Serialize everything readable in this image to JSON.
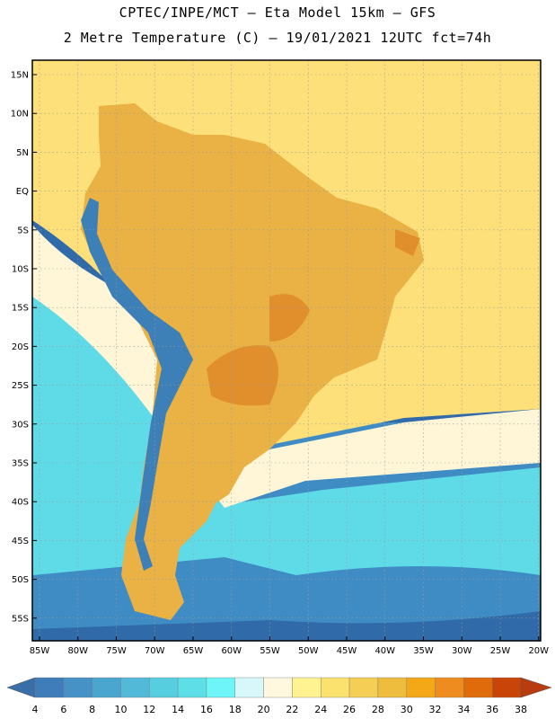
{
  "header": {
    "line1": "CPTEC/INPE/MCT –  Eta Model 15km – GFS",
    "line2": "2 Metre Temperature (C) – 19/01/2021 12UTC fct=74h"
  },
  "map": {
    "lat_labels": [
      "15N",
      "10N",
      "5N",
      "EQ",
      "5S",
      "10S",
      "15S",
      "20S",
      "25S",
      "30S",
      "35S",
      "40S",
      "45S",
      "50S",
      "55S"
    ],
    "lon_labels": [
      "85W",
      "80W",
      "75W",
      "70W",
      "65W",
      "60W",
      "55W",
      "50W",
      "45W",
      "40W",
      "35W",
      "30W",
      "25W",
      "20W"
    ],
    "lon_range": [
      -85,
      -20
    ],
    "lat_range": [
      -58,
      17
    ]
  },
  "legend": {
    "labels": [
      "4",
      "6",
      "8",
      "10",
      "12",
      "14",
      "16",
      "18",
      "20",
      "22",
      "24",
      "26",
      "28",
      "30",
      "32",
      "34",
      "36",
      "38"
    ],
    "colors": {
      "under": "#3a6ea8",
      "bins": [
        "#3e7dba",
        "#4691c6",
        "#4aa6cf",
        "#52bad8",
        "#57cde0",
        "#5edfe8",
        "#6ef5f7",
        "#d7f7fb",
        "#fff8df",
        "#fff391",
        "#fbe16e",
        "#f5cf55",
        "#efbd3d",
        "#f4a717",
        "#ef8c1f",
        "#e06b0a",
        "#c94407"
      ],
      "over": "#b83c10",
      "land_warm": "#eab144",
      "land_hot": "#e08f2c",
      "andes_cold": "#3d80b8",
      "ocean_warm": "#fde07a",
      "ocean_mid": "#fff6d8",
      "ocean_cool": "#5fdbe8",
      "ocean_cold": "#3f8cc4",
      "ocean_deep": "#316aa8",
      "grid": "#9a9a9a"
    }
  }
}
